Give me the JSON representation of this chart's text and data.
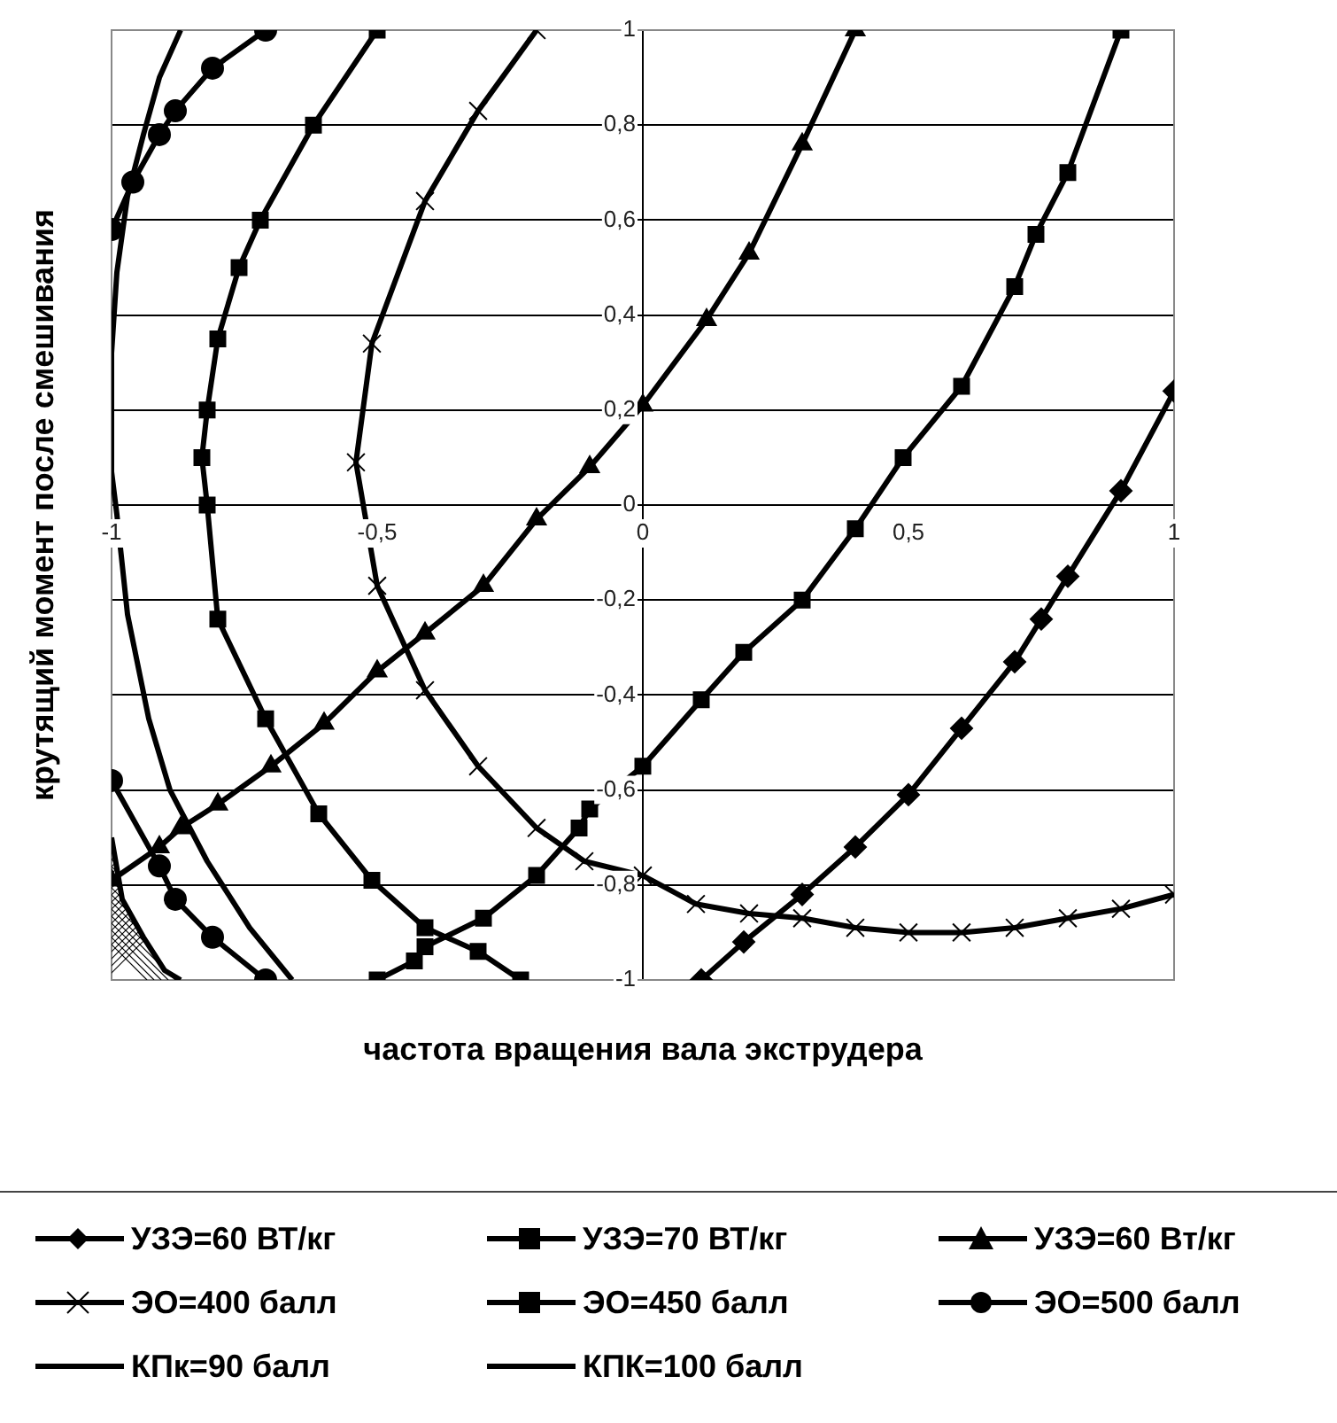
{
  "chart_data": {
    "type": "line",
    "xlabel": "частота вращения вала экструдера",
    "ylabel": "крутящий момент после смешивания",
    "xlim": [
      -1,
      1
    ],
    "ylim": [
      -1,
      1
    ],
    "xticks": [
      -1,
      {
        "value": -0.5,
        "label": "-0,5"
      },
      0,
      {
        "value": 0.5,
        "label": "0,5"
      },
      1
    ],
    "yticks": [
      -1,
      {
        "value": -0.8,
        "label": "-0,8"
      },
      {
        "value": -0.6,
        "label": "-0,6"
      },
      {
        "value": -0.4,
        "label": "-0,4"
      },
      {
        "value": -0.2,
        "label": "-0,2"
      },
      0,
      {
        "value": 0.2,
        "label": "0,2"
      },
      {
        "value": 0.4,
        "label": "0,4"
      },
      {
        "value": 0.6,
        "label": "0,6"
      },
      {
        "value": 0.8,
        "label": "0,8"
      },
      1
    ],
    "grid": "y",
    "legend": "bottom",
    "series": [
      {
        "name": "УЗЭ=60 ВТ/кг",
        "color": "#000000",
        "marker": "diamond",
        "x": [
          0.11,
          0.19,
          0.3,
          0.4,
          0.5,
          0.6,
          0.7,
          0.75,
          0.8,
          0.9,
          1.0
        ],
        "values": [
          -1.0,
          -0.92,
          -0.82,
          -0.72,
          -0.61,
          -0.47,
          -0.33,
          -0.24,
          -0.15,
          0.03,
          0.24
        ]
      },
      {
        "name": "УЗЭ=70 ВТ/кг",
        "color": "#000000",
        "marker": "square",
        "x": [
          -0.5,
          -0.43,
          -0.41,
          -0.3,
          -0.2,
          -0.12,
          -0.1,
          0,
          0.11,
          0.19,
          0.3,
          0.4,
          0.49,
          0.6,
          0.7,
          0.74,
          0.8,
          0.9
        ],
        "values": [
          -1.0,
          -0.96,
          -0.93,
          -0.87,
          -0.78,
          -0.68,
          -0.64,
          -0.55,
          -0.41,
          -0.31,
          -0.2,
          -0.05,
          0.1,
          0.25,
          0.46,
          0.57,
          0.7,
          1.0
        ]
      },
      {
        "name": "УЗЭ=60 Вт/кг",
        "color": "#000000",
        "marker": "triangle",
        "x": [
          -1.0,
          -0.91,
          -0.87,
          -0.8,
          -0.7,
          -0.6,
          -0.5,
          -0.41,
          -0.3,
          -0.2,
          -0.1,
          0,
          0.12,
          0.2,
          0.3,
          0.4
        ],
        "values": [
          -0.79,
          -0.72,
          -0.68,
          -0.63,
          -0.55,
          -0.46,
          -0.35,
          -0.27,
          -0.17,
          -0.03,
          0.08,
          0.21,
          0.39,
          0.53,
          0.76,
          1.0
        ]
      },
      {
        "name": "ЭО=400 балл",
        "color": "#000000",
        "marker": "cross",
        "x": [
          -0.2,
          -0.31,
          -0.41,
          -0.51,
          -0.54,
          -0.5,
          -0.41,
          -0.31,
          -0.2,
          -0.11,
          0,
          0.1,
          0.2,
          0.3,
          0.4,
          0.5,
          0.6,
          0.7,
          0.8,
          0.9,
          1.0
        ],
        "values": [
          1.0,
          0.83,
          0.64,
          0.34,
          0.09,
          -0.17,
          -0.39,
          -0.55,
          -0.68,
          -0.75,
          -0.78,
          -0.84,
          -0.86,
          -0.87,
          -0.89,
          -0.9,
          -0.9,
          -0.89,
          -0.87,
          -0.85,
          -0.82
        ]
      },
      {
        "name": "ЭО=450 балл",
        "color": "#000000",
        "marker": "square",
        "x": [
          -0.5,
          -0.62,
          -0.72,
          -0.76,
          -0.8,
          -0.82,
          -0.83,
          -0.82,
          -0.8,
          -0.71,
          -0.61,
          -0.51,
          -0.41,
          -0.31,
          -0.23
        ],
        "values": [
          1.0,
          0.8,
          0.6,
          0.5,
          0.35,
          0.2,
          0.1,
          0,
          -0.24,
          -0.45,
          -0.65,
          -0.79,
          -0.89,
          -0.94,
          -1.0
        ]
      },
      {
        "name": "ЭО=500 балл",
        "color": "#000000",
        "marker": "circle",
        "x": [
          -0.71,
          -0.81,
          -0.88,
          -0.91,
          -0.96,
          -1.0,
          null,
          -1.0,
          -0.91,
          -0.88,
          -0.81,
          -0.71
        ],
        "values": [
          1.0,
          0.92,
          0.83,
          0.78,
          0.68,
          0.58,
          null,
          -0.58,
          -0.76,
          -0.83,
          -0.91,
          -1.0
        ]
      },
      {
        "name": "КПк=90 балл",
        "color": "#000000",
        "marker": "none",
        "x": [
          -0.87,
          -0.91,
          -0.94,
          -0.97,
          -0.99,
          -1.0,
          -1.0,
          -0.99,
          -0.97,
          -0.93,
          -0.89,
          -0.82,
          -0.74,
          -0.66
        ],
        "values": [
          1.0,
          0.9,
          0.78,
          0.65,
          0.49,
          0.32,
          0.07,
          -0.02,
          -0.23,
          -0.45,
          -0.6,
          -0.75,
          -0.89,
          -1.0
        ]
      },
      {
        "name": "КПК=100 балл",
        "color": "#000000",
        "marker": "none",
        "x": [
          -1.0,
          -0.98,
          -0.94,
          -0.9,
          -0.87
        ],
        "values": [
          -0.7,
          -0.83,
          -0.91,
          -0.98,
          -1.0
        ]
      }
    ]
  }
}
